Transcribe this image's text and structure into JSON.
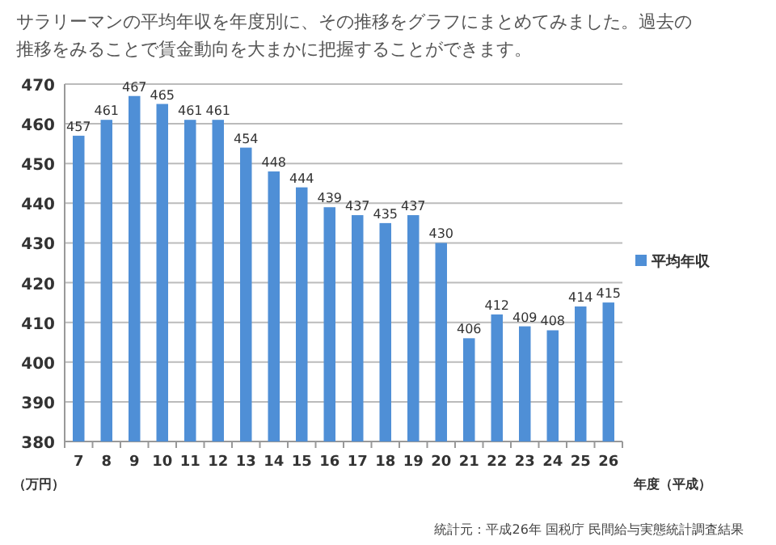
{
  "chart_data": {
    "type": "bar",
    "title": "サラリーマンの平均年収を年度別に、その推移をグラフにまとめてみました。過去の推移をみることで賃金動向を大まかに把握することができます。",
    "xlabel": "年度（平成）",
    "ylabel": "（万円）",
    "categories": [
      "7",
      "8",
      "9",
      "10",
      "11",
      "12",
      "13",
      "14",
      "15",
      "16",
      "17",
      "18",
      "19",
      "20",
      "21",
      "22",
      "23",
      "24",
      "25",
      "26"
    ],
    "series": [
      {
        "name": "平均年収",
        "color": "#4f8fd6",
        "values": [
          457,
          461,
          467,
          465,
          461,
          461,
          454,
          448,
          444,
          439,
          437,
          435,
          437,
          430,
          406,
          412,
          409,
          408,
          414,
          415
        ]
      }
    ],
    "ylim": [
      380,
      470
    ],
    "yticks": [
      380,
      390,
      400,
      410,
      420,
      430,
      440,
      450,
      460,
      470
    ],
    "grid": "y",
    "legend": "right",
    "data_labels": true,
    "annotations": [
      "統計元：平成26年 国税庁 民間給与実態統計調査結果"
    ]
  }
}
